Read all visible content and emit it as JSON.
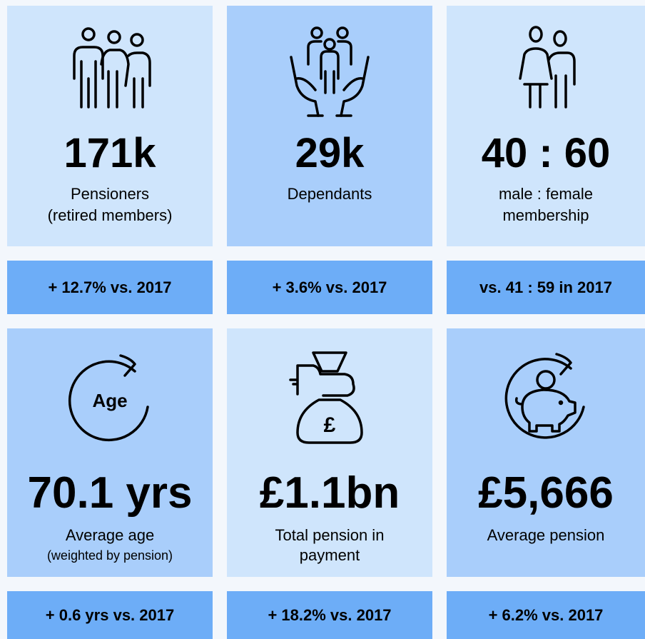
{
  "cards": [
    {
      "value": "171k",
      "label": [
        "Pensioners",
        "(retired members)"
      ],
      "change": "+ 12.7% vs. 2017"
    },
    {
      "value": "29k",
      "label": [
        "Dependants"
      ],
      "change": "+ 3.6% vs. 2017"
    },
    {
      "value": "40 : 60",
      "label": [
        "male : female",
        "membership"
      ],
      "change": "vs. 41 : 59 in 2017"
    },
    {
      "value": "70.1 yrs",
      "label": [
        "Average age",
        "(weighted by pension)"
      ],
      "change": "+ 0.6 yrs vs. 2017",
      "icon_text": "Age"
    },
    {
      "value": "£1.1bn",
      "label": [
        "Total pension in",
        "payment"
      ],
      "change": "+ 18.2% vs. 2017",
      "icon_text": "£"
    },
    {
      "value": "£5,666",
      "label": [
        "Average pension"
      ],
      "change": "+ 6.2% vs. 2017"
    }
  ]
}
